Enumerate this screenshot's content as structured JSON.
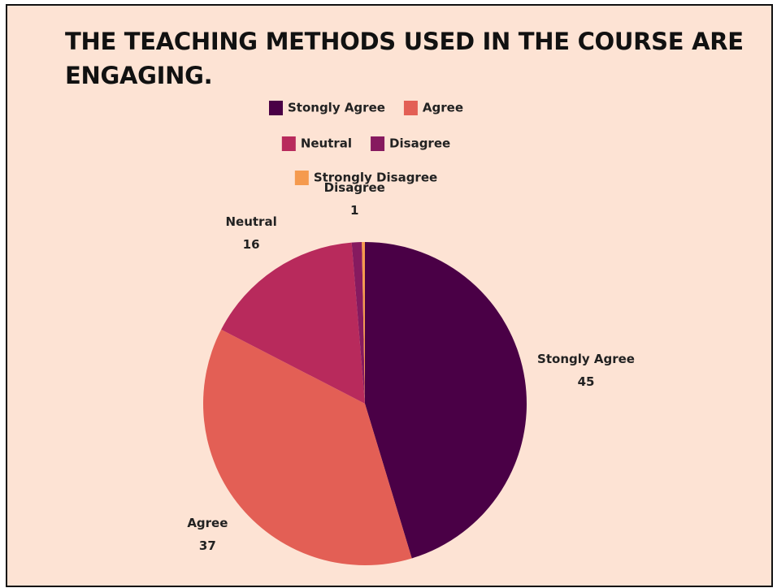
{
  "chart_data": {
    "type": "pie",
    "title": "THE TEACHING METHODS USED IN THE COURSE ARE ENGAGING.",
    "categories": [
      "Stongly Agree",
      "Agree",
      "Neutral",
      "Disagree",
      "Strongly Disagree"
    ],
    "values": [
      45,
      37,
      16,
      1,
      0.3
    ],
    "value_labels": [
      45,
      37,
      16,
      1,
      null
    ],
    "colors": [
      "#4a0046",
      "#e35f55",
      "#b82a5c",
      "#861a5f",
      "#f59a4e"
    ],
    "legend": "top"
  }
}
